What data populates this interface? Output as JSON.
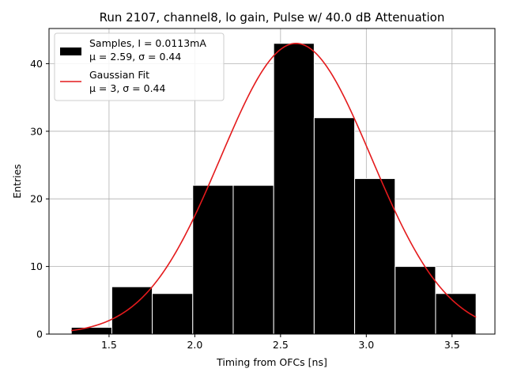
{
  "chart_data": {
    "type": "bar",
    "title": "Run 2107, channel8, lo gain, Pulse w/ 40.0 dB Attenuation",
    "xlabel": "Timing from OFCs [ns]",
    "ylabel": "Entries",
    "xlim": [
      1.15,
      3.75
    ],
    "ylim": [
      0,
      45.2
    ],
    "xticks": [
      1.5,
      2.0,
      2.5,
      3.0,
      3.5
    ],
    "xtick_labels": [
      "1.5",
      "2.0",
      "2.5",
      "3.0",
      "3.5"
    ],
    "yticks": [
      0,
      10,
      20,
      30,
      40
    ],
    "ytick_labels": [
      "0",
      "10",
      "20",
      "30",
      "40"
    ],
    "grid": true,
    "legend_position": "upper-left",
    "histogram": {
      "name_line1": "Samples, I = 0.0113mA",
      "name_line2": "μ = 2.59, σ = 0.44",
      "color": "#000000",
      "edgecolor": "#ffffff",
      "bin_edges": [
        1.28,
        1.516,
        1.752,
        1.988,
        2.224,
        2.46,
        2.696,
        2.932,
        3.168,
        3.404,
        3.64
      ],
      "values": [
        1,
        7,
        6,
        22,
        22,
        43,
        32,
        23,
        10,
        6
      ]
    },
    "fit": {
      "name_line1": "Gaussian Fit",
      "name_line2": "μ = 3, σ = 0.44",
      "color": "#e41a1c",
      "type": "gaussian",
      "amplitude": 43,
      "mean": 2.59,
      "sigma": 0.44,
      "x_range": [
        1.28,
        3.64
      ]
    }
  }
}
